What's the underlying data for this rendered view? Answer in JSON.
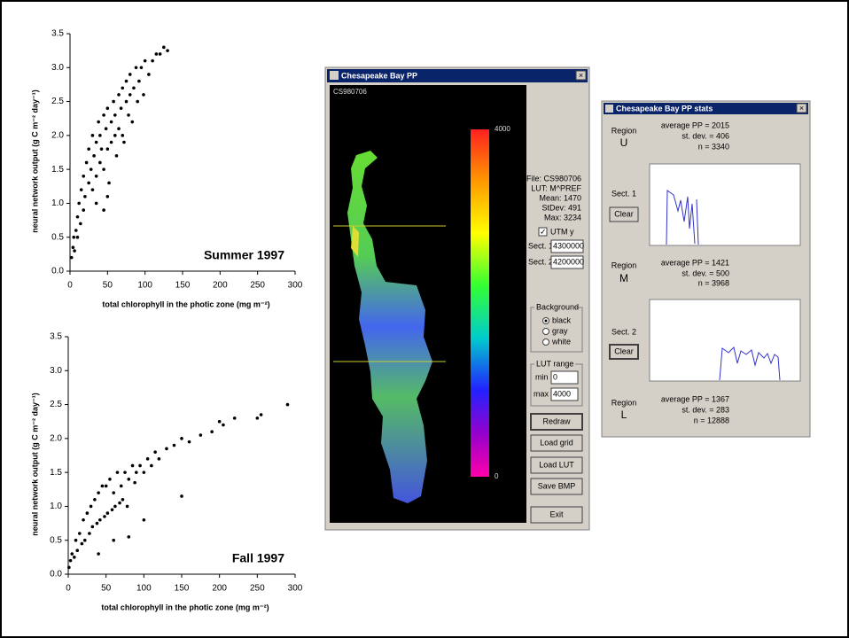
{
  "chart_data": [
    {
      "type": "scatter",
      "x_label": "total chlorophyll in the photic zone (mg m⁻²)",
      "y_label": "neural network output (g C m⁻² day⁻¹)",
      "annotation": "Summer 1997",
      "color": "#000000",
      "x": [
        2,
        4,
        5,
        6,
        8,
        10,
        10,
        12,
        14,
        15,
        18,
        18,
        20,
        22,
        25,
        25,
        28,
        30,
        30,
        32,
        35,
        35,
        38,
        40,
        40,
        42,
        45,
        45,
        48,
        50,
        50,
        52,
        55,
        55,
        58,
        60,
        60,
        62,
        65,
        65,
        68,
        70,
        70,
        72,
        75,
        75,
        78,
        80,
        80,
        83,
        85,
        88,
        90,
        92,
        95,
        98,
        100,
        105,
        110,
        115,
        120,
        125,
        130,
        50,
        45,
        35
      ],
      "values": [
        0.2,
        0.35,
        0.5,
        0.3,
        0.6,
        0.8,
        0.5,
        1.0,
        0.7,
        1.2,
        1.4,
        0.9,
        1.1,
        1.6,
        1.3,
        1.8,
        1.5,
        2.0,
        1.2,
        1.7,
        1.9,
        1.4,
        2.2,
        1.6,
        2.0,
        1.8,
        2.3,
        1.5,
        2.1,
        2.4,
        1.8,
        1.3,
        2.2,
        1.9,
        2.5,
        2.0,
        2.3,
        1.7,
        2.6,
        2.1,
        2.4,
        2.7,
        2.0,
        1.9,
        2.5,
        2.8,
        2.3,
        2.9,
        2.6,
        2.2,
        2.7,
        3.0,
        2.5,
        2.8,
        3.0,
        2.6,
        3.1,
        2.9,
        3.1,
        3.2,
        3.2,
        3.3,
        3.25,
        1.1,
        0.9,
        1.0
      ],
      "xlim": [
        0,
        300
      ],
      "xticks": [
        0,
        50,
        100,
        150,
        200,
        250,
        300
      ],
      "ylim": [
        0,
        3.5
      ],
      "yticks": [
        {
          "value": 0,
          "label": "0.0"
        },
        0.5,
        {
          "value": 1,
          "label": "1.0"
        },
        1.5,
        {
          "value": 2,
          "label": "2.0"
        },
        2.5,
        {
          "value": 3,
          "label": "3.0"
        },
        3.5
      ]
    },
    {
      "type": "scatter",
      "x_label": "total chlorophyll in the photic zone (mg m⁻²)",
      "y_label": "neural network output (g C m⁻² day⁻¹)",
      "annotation": "Fall 1997",
      "color": "#000000",
      "x": [
        1,
        3,
        5,
        8,
        10,
        12,
        15,
        18,
        20,
        22,
        25,
        28,
        30,
        32,
        35,
        38,
        40,
        42,
        45,
        48,
        50,
        52,
        55,
        58,
        60,
        62,
        65,
        68,
        70,
        72,
        75,
        78,
        80,
        85,
        88,
        90,
        95,
        100,
        105,
        110,
        115,
        120,
        130,
        140,
        150,
        160,
        175,
        190,
        200,
        205,
        220,
        250,
        255,
        290,
        150,
        40,
        60,
        80,
        100
      ],
      "values": [
        0.1,
        0.2,
        0.3,
        0.25,
        0.5,
        0.35,
        0.6,
        0.45,
        0.8,
        0.5,
        0.9,
        0.6,
        1.0,
        0.7,
        1.1,
        0.75,
        1.2,
        0.8,
        1.3,
        0.85,
        1.3,
        0.9,
        1.4,
        0.95,
        1.2,
        1.0,
        1.5,
        1.05,
        1.3,
        1.1,
        1.5,
        1.0,
        1.4,
        1.6,
        1.35,
        1.5,
        1.6,
        1.5,
        1.7,
        1.6,
        1.8,
        1.7,
        1.85,
        1.9,
        2.0,
        1.95,
        2.05,
        2.1,
        2.25,
        2.2,
        2.3,
        2.3,
        2.35,
        2.5,
        1.15,
        0.3,
        0.5,
        0.55,
        0.8
      ],
      "xlim": [
        0,
        300
      ],
      "xticks": [
        0,
        50,
        100,
        150,
        200,
        250,
        300
      ],
      "ylim": [
        0,
        3.5
      ],
      "yticks": [
        {
          "value": 0,
          "label": "0.0"
        },
        0.5,
        {
          "value": 1,
          "label": "1.0"
        },
        1.5,
        {
          "value": 2,
          "label": "2.0"
        },
        2.5,
        {
          "value": 3,
          "label": "3.0"
        },
        3.5
      ]
    }
  ],
  "main_window": {
    "title": "Chesapeake Bay PP",
    "canvas_label": "CS980706",
    "colorbar_labels": [
      "4000",
      "0"
    ],
    "info": [
      "File: CS980706",
      "LUT: M^PREF",
      "Mean: 1470",
      "StDev: 491",
      "Max: 3234"
    ],
    "utm_checkbox": "UTM y",
    "sect1_label": "Sect. 1",
    "sect1_value": "4300000",
    "sect2_label": "Sect. 2",
    "sect2_value": "4200000",
    "background": {
      "title": "Background",
      "options": [
        "black",
        "gray",
        "white"
      ]
    },
    "lut_range": {
      "title": "LUT range",
      "min_label": "min",
      "min_value": "0",
      "max_label": "max",
      "max_value": "4000"
    },
    "buttons": [
      "Redraw",
      "Load grid",
      "Load LUT",
      "Save BMP",
      "Exit"
    ]
  },
  "stats_window": {
    "title": "Chesapeake Bay PP stats",
    "regions": [
      {
        "label": "Region",
        "name": "U",
        "average": "average PP = 2015",
        "stdev": "st. dev. = 406",
        "n": "n = 3340"
      },
      {
        "label": "Region",
        "name": "M",
        "average": "average PP = 1421",
        "stdev": "st. dev. = 500",
        "n": "n = 3968"
      },
      {
        "label": "Region",
        "name": "L",
        "average": "average PP = 1367",
        "stdev": "st. dev. = 283",
        "n": "n = 12888"
      }
    ],
    "sections": [
      {
        "label": "Sect. 1",
        "button": "Clear"
      },
      {
        "label": "Sect. 2",
        "button": "Clear"
      }
    ]
  }
}
